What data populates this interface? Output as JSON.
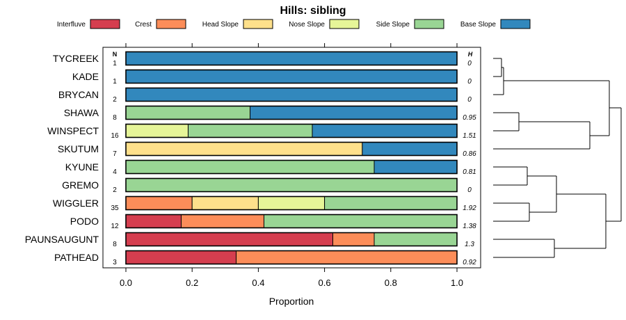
{
  "chart_data": {
    "type": "bar",
    "orientation": "horizontal-stacked",
    "title": "Hills: sibling",
    "xlabel": "Proportion",
    "ylabel": "",
    "xlim": [
      0,
      1
    ],
    "x_ticks": [
      "0.0",
      "0.2",
      "0.4",
      "0.6",
      "0.8",
      "1.0"
    ],
    "n_header": "N",
    "h_header": "H",
    "legend_position": "top",
    "categories": [
      "TYCREEK",
      "KADE",
      "BRYCAN",
      "SHAWA",
      "WINSPECT",
      "SKUTUM",
      "KYUNE",
      "GREMO",
      "WIGGLER",
      "PODO",
      "PAUNSAUGUNT",
      "PATHEAD"
    ],
    "n": [
      "1",
      "1",
      "2",
      "8",
      "16",
      "7",
      "4",
      "2",
      "35",
      "12",
      "8",
      "3"
    ],
    "h": [
      "0",
      "0",
      "0",
      "0.95",
      "1.51",
      "0.86",
      "0.81",
      "0",
      "1.92",
      "1.38",
      "1.3",
      "0.92"
    ],
    "series": [
      {
        "name": "Interfluve",
        "color": "#D53E4F",
        "values": [
          0,
          0,
          0,
          0,
          0,
          0,
          0,
          0,
          0,
          0.167,
          0.625,
          0.333
        ]
      },
      {
        "name": "Crest",
        "color": "#FC8D59",
        "values": [
          0,
          0,
          0,
          0,
          0,
          0,
          0,
          0,
          0.2,
          0.25,
          0.125,
          0.667
        ]
      },
      {
        "name": "Head Slope",
        "color": "#FEE08B",
        "values": [
          0,
          0,
          0,
          0,
          0,
          0.714,
          0,
          0,
          0.2,
          0,
          0,
          0
        ]
      },
      {
        "name": "Nose Slope",
        "color": "#E6F598",
        "values": [
          0,
          0,
          0,
          0,
          0.188,
          0,
          0,
          0,
          0.2,
          0,
          0,
          0
        ]
      },
      {
        "name": "Side Slope",
        "color": "#99D594",
        "values": [
          0,
          0,
          0,
          0.375,
          0.375,
          0,
          0.75,
          1.0,
          0.4,
          0.583,
          0.25,
          0
        ]
      },
      {
        "name": "Base Slope",
        "color": "#3288BD",
        "values": [
          1.0,
          1.0,
          1.0,
          0.625,
          0.437,
          0.286,
          0.25,
          0,
          0,
          0,
          0,
          0
        ]
      }
    ]
  }
}
